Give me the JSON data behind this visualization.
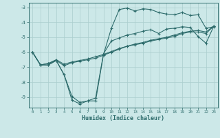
{
  "xlabel": "Humidex (Indice chaleur)",
  "bg_color": "#cce8e8",
  "line_color": "#2d6b6b",
  "grid_color": "#aacece",
  "xlim": [
    -0.5,
    23.5
  ],
  "ylim": [
    -9.7,
    -2.7
  ],
  "yticks": [
    -9,
    -8,
    -7,
    -6,
    -5,
    -4,
    -3
  ],
  "xticks": [
    0,
    1,
    2,
    3,
    4,
    5,
    6,
    7,
    8,
    9,
    10,
    11,
    12,
    13,
    14,
    15,
    16,
    17,
    18,
    19,
    20,
    21,
    22,
    23
  ],
  "line1_x": [
    0,
    1,
    2,
    3,
    4,
    5,
    6,
    7,
    8,
    9,
    10,
    11,
    12,
    13,
    14,
    15,
    16,
    17,
    18,
    19,
    20,
    21,
    22,
    23
  ],
  "line1_y": [
    -6.0,
    -6.85,
    -6.85,
    -6.55,
    -7.5,
    -9.2,
    -9.45,
    -9.25,
    -9.25,
    -6.15,
    -4.4,
    -3.15,
    -3.05,
    -3.25,
    -3.1,
    -3.15,
    -3.35,
    -3.45,
    -3.5,
    -3.35,
    -3.55,
    -3.5,
    -4.4,
    -4.3
  ],
  "line2_x": [
    0,
    1,
    2,
    3,
    4,
    5,
    6,
    7,
    8,
    9,
    10,
    11,
    12,
    13,
    14,
    15,
    16,
    17,
    18,
    19,
    20,
    21,
    22,
    23
  ],
  "line2_y": [
    -6.0,
    -6.85,
    -6.85,
    -6.55,
    -7.5,
    -8.95,
    -9.35,
    -9.25,
    -9.05,
    -6.1,
    -5.25,
    -5.05,
    -4.85,
    -4.75,
    -4.6,
    -4.5,
    -4.75,
    -4.45,
    -4.4,
    -4.3,
    -4.35,
    -4.95,
    -5.4,
    -4.25
  ],
  "line3_x": [
    0,
    1,
    2,
    3,
    4,
    5,
    6,
    7,
    8,
    9,
    10,
    11,
    12,
    13,
    14,
    15,
    16,
    17,
    18,
    19,
    20,
    21,
    22,
    23
  ],
  "line3_y": [
    -6.0,
    -6.85,
    -6.75,
    -6.5,
    -6.8,
    -6.65,
    -6.55,
    -6.45,
    -6.3,
    -6.15,
    -5.95,
    -5.75,
    -5.6,
    -5.45,
    -5.35,
    -5.2,
    -5.1,
    -5.0,
    -4.85,
    -4.7,
    -4.6,
    -4.55,
    -4.65,
    -4.25
  ],
  "line4_x": [
    0,
    1,
    2,
    3,
    4,
    5,
    6,
    7,
    8,
    9,
    10,
    11,
    12,
    13,
    14,
    15,
    16,
    17,
    18,
    19,
    20,
    21,
    22,
    23
  ],
  "line4_y": [
    -6.0,
    -6.85,
    -6.75,
    -6.55,
    -6.9,
    -6.7,
    -6.6,
    -6.5,
    -6.4,
    -6.2,
    -6.0,
    -5.8,
    -5.6,
    -5.5,
    -5.4,
    -5.25,
    -5.15,
    -5.05,
    -4.95,
    -4.75,
    -4.65,
    -4.65,
    -4.75,
    -4.25
  ]
}
